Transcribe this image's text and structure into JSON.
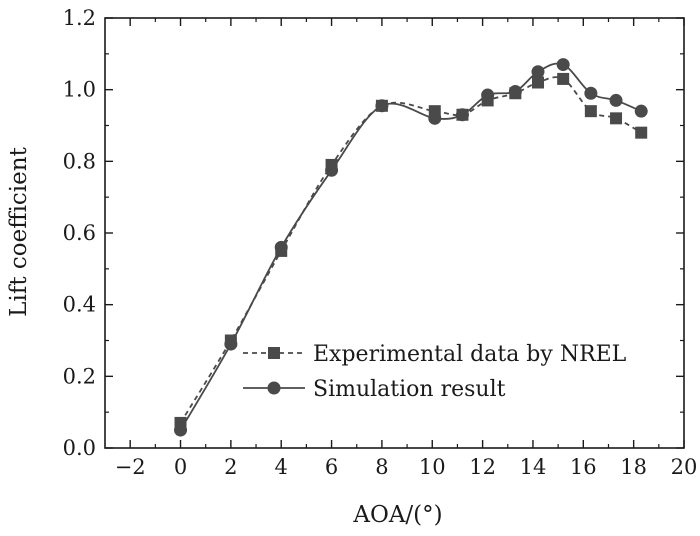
{
  "colors": {
    "series": "#4a4a4a",
    "axis": "#1a1a1a",
    "background": "#ffffff"
  },
  "chart_data": {
    "type": "line",
    "title": "",
    "xlabel": "AOA/(°)",
    "ylabel": "Lift coefficient",
    "xlim": [
      -3,
      20
    ],
    "ylim": [
      0.0,
      1.2
    ],
    "xticks": [
      -2,
      0,
      2,
      4,
      6,
      8,
      10,
      12,
      14,
      16,
      18,
      20
    ],
    "xtick_labels": [
      "−2",
      "0",
      "2",
      "4",
      "6",
      "8",
      "10",
      "12",
      "14",
      "16",
      "18",
      "20"
    ],
    "yticks": [
      0.0,
      0.2,
      0.4,
      0.6,
      0.8,
      1.0,
      1.2
    ],
    "ytick_labels": [
      "0.0",
      "0.2",
      "0.4",
      "0.6",
      "0.8",
      "1.0",
      "1.2"
    ],
    "grid": false,
    "legend_position": "lower-right",
    "series": [
      {
        "name": "Experimental data by NREL",
        "marker": "square",
        "line_style": "dashed",
        "x": [
          0,
          2,
          4,
          6,
          8,
          10.1,
          11.2,
          12.2,
          13.3,
          14.2,
          15.2,
          16.3,
          17.3,
          18.3
        ],
        "y": [
          0.07,
          0.3,
          0.55,
          0.79,
          0.955,
          0.94,
          0.93,
          0.97,
          0.99,
          1.02,
          1.03,
          0.94,
          0.92,
          0.88
        ]
      },
      {
        "name": "Simulation result",
        "marker": "circle",
        "line_style": "solid",
        "x": [
          0,
          2,
          4,
          6,
          8,
          10.1,
          11.2,
          12.2,
          13.3,
          14.2,
          15.2,
          16.3,
          17.3,
          18.3
        ],
        "y": [
          0.05,
          0.29,
          0.56,
          0.775,
          0.955,
          0.92,
          0.93,
          0.985,
          0.995,
          1.05,
          1.07,
          0.99,
          0.97,
          0.94
        ]
      }
    ]
  }
}
